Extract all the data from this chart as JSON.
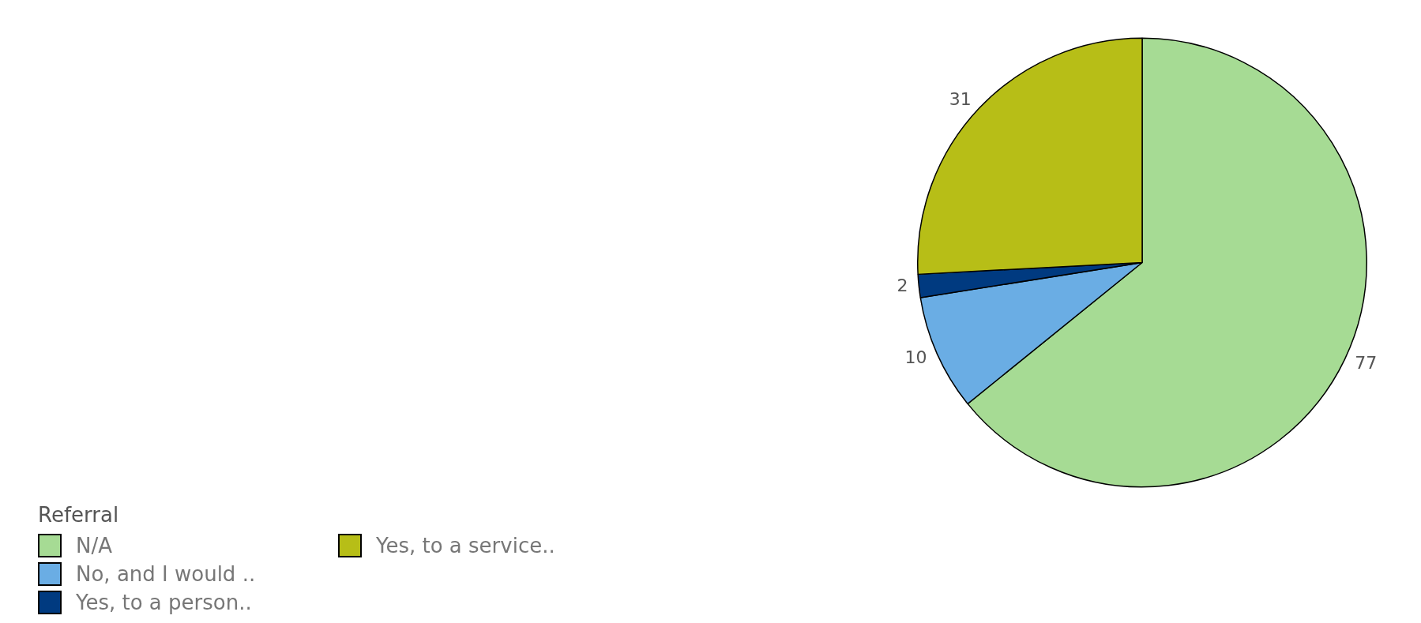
{
  "chart_data": {
    "type": "pie",
    "legend_title": "Referral",
    "categories": [
      "N/A",
      "No, and I would ..",
      "Yes, to a person..",
      "Yes, to a service.."
    ],
    "values": [
      77,
      10,
      2,
      31
    ],
    "colors": [
      "#a6db94",
      "#6aade4",
      "#003a80",
      "#b7be17"
    ],
    "data_labels": true,
    "legend": "bottom left"
  }
}
